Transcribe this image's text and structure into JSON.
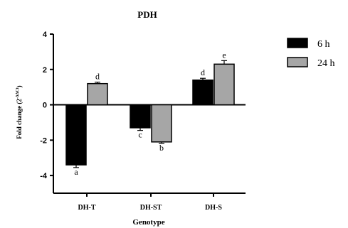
{
  "chart_data": {
    "type": "bar",
    "title": "PDH",
    "xlabel": "Genotype",
    "ylabel": "Fold change (2",
    "ylabel_superscript": "-ΔΔCt",
    "ylabel_suffix": ")",
    "ylim": [
      -5,
      4
    ],
    "yticks": [
      -4,
      -2,
      0,
      2,
      4
    ],
    "grid": false,
    "legend_position": "right",
    "categories": [
      "DH-T",
      "DH-ST",
      "DH-S"
    ],
    "series": [
      {
        "name": "6 h",
        "color": "#000000",
        "values": [
          -3.4,
          -1.3,
          1.4
        ],
        "errors": [
          0.15,
          0.15,
          0.1
        ],
        "letters": [
          "a",
          "c",
          "d"
        ]
      },
      {
        "name": "24 h",
        "color": "#a6a6a6",
        "values": [
          1.2,
          -2.1,
          2.3
        ],
        "errors": [
          0.08,
          0.08,
          0.2
        ],
        "letters": [
          "d",
          "b",
          "e"
        ]
      }
    ]
  }
}
